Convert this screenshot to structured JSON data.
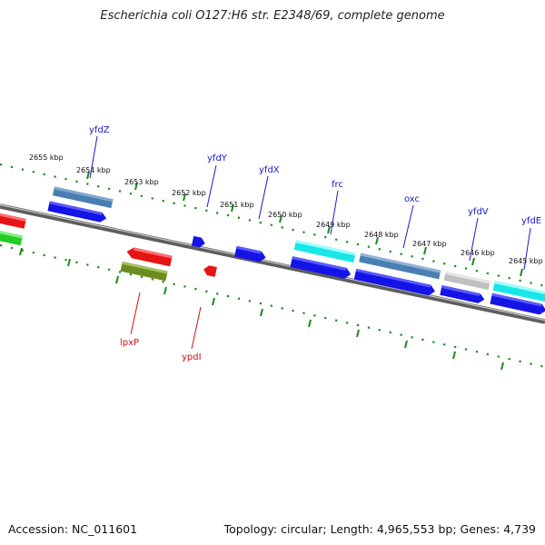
{
  "title": "Escherichia coli O127:H6 str. E2348/69, complete genome",
  "footer": {
    "accession": "Accession: NC_011601",
    "topology": "Topology: circular; Length: 4,965,553 bp; Genes: 4,739"
  },
  "scale_labels": [
    "2655 kbp",
    "2654 kbp",
    "2653 kbp",
    "2652 kbp",
    "2651 kbp",
    "2650 kbp",
    "2649 kbp",
    "2648 kbp",
    "2647 kbp",
    "2646 kbp",
    "2645 kbp"
  ],
  "forward_strand_labels": [
    "yfdZ",
    "yfdY",
    "yfdX",
    "frc",
    "oxc",
    "yfdV",
    "yfdE"
  ],
  "reverse_strand_labels": [
    "lpxP",
    "ypdI"
  ],
  "colors": {
    "gene_blue": "#1414e6",
    "steel_blue": "#4a7eb0",
    "cyan": "#19e6e6",
    "gray": "#c0c0c0",
    "red": "#e61414",
    "green": "#22cc22",
    "olive": "#6b8c1e",
    "tick_green": "#1a8a1a",
    "label_blue": "#1a1acc",
    "label_red": "#d01010"
  }
}
